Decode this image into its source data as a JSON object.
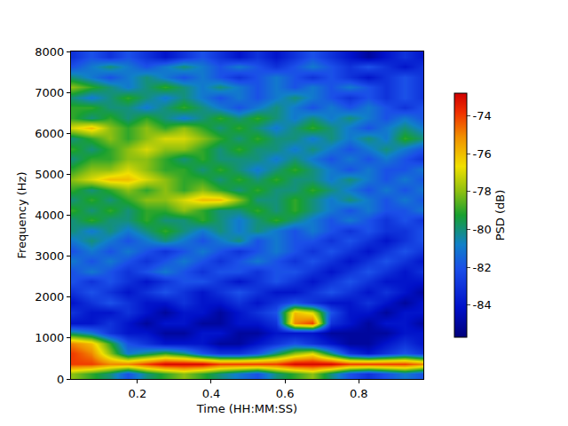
{
  "chart_data": {
    "type": "heatmap",
    "xlabel": "Time (HH:MM:SS)",
    "ylabel": "Frequency (Hz)",
    "xlim": [
      0.02,
      0.975
    ],
    "ylim": [
      0,
      8000
    ],
    "xticks": [
      0.2,
      0.4,
      0.6,
      0.8
    ],
    "yticks": [
      0,
      1000,
      2000,
      3000,
      4000,
      5000,
      6000,
      7000,
      8000
    ],
    "x": [
      0.025,
      0.075,
      0.125,
      0.175,
      0.225,
      0.275,
      0.325,
      0.375,
      0.425,
      0.475,
      0.525,
      0.575,
      0.625,
      0.675,
      0.725,
      0.775,
      0.825,
      0.875,
      0.925,
      0.975
    ],
    "y": [
      125,
      375,
      625,
      875,
      1125,
      1375,
      1625,
      1875,
      2125,
      2375,
      2625,
      2875,
      3125,
      3375,
      3625,
      3875,
      4125,
      4375,
      4625,
      4875,
      5125,
      5375,
      5625,
      5875,
      6125,
      6375,
      6625,
      6875,
      7125,
      7375,
      7625,
      7875
    ],
    "z": [
      [
        -78,
        -79,
        -80,
        -82,
        -80,
        -79,
        -78,
        -79,
        -80,
        -81,
        -82,
        -80,
        -79,
        -78,
        -80,
        -82,
        -83,
        -82,
        -81,
        -82
      ],
      [
        -74,
        -74,
        -75,
        -75,
        -74,
        -73,
        -73,
        -73,
        -74,
        -74,
        -74,
        -74,
        -73,
        -73,
        -73,
        -74,
        -74,
        -74,
        -74,
        -75
      ],
      [
        -74,
        -75,
        -78,
        -81,
        -80,
        -79,
        -80,
        -82,
        -83,
        -83,
        -82,
        -80,
        -78,
        -77,
        -80,
        -83,
        -84,
        -83,
        -82,
        -83
      ],
      [
        -75,
        -76,
        -79,
        -82,
        -83,
        -84,
        -84,
        -84,
        -85,
        -85,
        -84,
        -83,
        -82,
        -83,
        -84,
        -85,
        -85,
        -84,
        -83,
        -84
      ],
      [
        -80,
        -81,
        -83,
        -84,
        -84,
        -85,
        -85,
        -84,
        -84,
        -85,
        -85,
        -84,
        -84,
        -84,
        -85,
        -85,
        -85,
        -85,
        -84,
        -84
      ],
      [
        -84,
        -84,
        -83,
        -84,
        -85,
        -84,
        -84,
        -85,
        -85,
        -84,
        -84,
        -83,
        -75,
        -74,
        -83,
        -84,
        -85,
        -84,
        -84,
        -85
      ],
      [
        -83,
        -84,
        -84,
        -83,
        -84,
        -85,
        -84,
        -84,
        -85,
        -84,
        -83,
        -82,
        -76,
        -77,
        -82,
        -84,
        -84,
        -85,
        -84,
        -84
      ],
      [
        -84,
        -83,
        -82,
        -83,
        -84,
        -84,
        -83,
        -84,
        -84,
        -83,
        -84,
        -83,
        -82,
        -83,
        -84,
        -84,
        -83,
        -84,
        -85,
        -84
      ],
      [
        -83,
        -82,
        -83,
        -84,
        -83,
        -82,
        -83,
        -84,
        -83,
        -82,
        -83,
        -84,
        -84,
        -83,
        -82,
        -83,
        -84,
        -83,
        -84,
        -85
      ],
      [
        -82,
        -83,
        -82,
        -83,
        -84,
        -83,
        -82,
        -82,
        -83,
        -84,
        -83,
        -82,
        -83,
        -84,
        -83,
        -82,
        -83,
        -84,
        -84,
        -84
      ],
      [
        -82,
        -81,
        -82,
        -83,
        -82,
        -81,
        -82,
        -83,
        -82,
        -82,
        -83,
        -82,
        -82,
        -83,
        -84,
        -83,
        -82,
        -83,
        -84,
        -83
      ],
      [
        -81,
        -82,
        -81,
        -82,
        -83,
        -82,
        -81,
        -82,
        -83,
        -82,
        -81,
        -82,
        -83,
        -82,
        -83,
        -84,
        -83,
        -82,
        -83,
        -84
      ],
      [
        -82,
        -81,
        -82,
        -81,
        -82,
        -83,
        -82,
        -81,
        -82,
        -83,
        -82,
        -81,
        -82,
        -83,
        -82,
        -83,
        -84,
        -83,
        -82,
        -83
      ],
      [
        -81,
        -80,
        -81,
        -82,
        -81,
        -80,
        -81,
        -82,
        -81,
        -80,
        -82,
        -81,
        -82,
        -82,
        -83,
        -82,
        -83,
        -84,
        -83,
        -82
      ],
      [
        -80,
        -81,
        -80,
        -81,
        -80,
        -79,
        -80,
        -81,
        -80,
        -81,
        -80,
        -81,
        -82,
        -81,
        -82,
        -83,
        -82,
        -83,
        -83,
        -82
      ],
      [
        -80,
        -79,
        -80,
        -80,
        -79,
        -80,
        -80,
        -79,
        -80,
        -81,
        -80,
        -79,
        -80,
        -81,
        -82,
        -81,
        -82,
        -83,
        -82,
        -83
      ],
      [
        -79,
        -80,
        -79,
        -80,
        -79,
        -79,
        -78,
        -79,
        -80,
        -80,
        -79,
        -80,
        -79,
        -80,
        -81,
        -82,
        -81,
        -82,
        -82,
        -81
      ],
      [
        -80,
        -79,
        -80,
        -79,
        -78,
        -78,
        -77,
        -76,
        -76,
        -78,
        -80,
        -80,
        -79,
        -80,
        -81,
        -80,
        -81,
        -82,
        -81,
        -82
      ],
      [
        -79,
        -80,
        -79,
        -78,
        -79,
        -78,
        -79,
        -78,
        -79,
        -80,
        -79,
        -80,
        -80,
        -79,
        -80,
        -81,
        -82,
        -81,
        -82,
        -81
      ],
      [
        -78,
        -77,
        -76,
        -76,
        -77,
        -78,
        -79,
        -79,
        -80,
        -79,
        -80,
        -79,
        -80,
        -80,
        -81,
        -80,
        -81,
        -82,
        -81,
        -82
      ],
      [
        -79,
        -78,
        -78,
        -77,
        -78,
        -79,
        -79,
        -80,
        -79,
        -80,
        -81,
        -80,
        -79,
        -80,
        -81,
        -82,
        -81,
        -82,
        -82,
        -81
      ],
      [
        -80,
        -79,
        -79,
        -78,
        -78,
        -79,
        -80,
        -79,
        -80,
        -80,
        -80,
        -81,
        -80,
        -81,
        -82,
        -81,
        -82,
        -81,
        -82,
        -83
      ],
      [
        -79,
        -80,
        -79,
        -78,
        -77,
        -78,
        -78,
        -79,
        -80,
        -79,
        -80,
        -80,
        -81,
        -80,
        -81,
        -82,
        -81,
        -80,
        -81,
        -82
      ],
      [
        -80,
        -79,
        -78,
        -79,
        -78,
        -77,
        -77,
        -78,
        -79,
        -80,
        -79,
        -80,
        -80,
        -81,
        -80,
        -81,
        -80,
        -81,
        -79,
        -80
      ],
      [
        -77,
        -76,
        -78,
        -79,
        -78,
        -79,
        -78,
        -79,
        -80,
        -79,
        -80,
        -81,
        -80,
        -79,
        -80,
        -81,
        -82,
        -81,
        -80,
        -81
      ],
      [
        -79,
        -80,
        -79,
        -80,
        -79,
        -80,
        -81,
        -80,
        -79,
        -80,
        -79,
        -80,
        -81,
        -80,
        -81,
        -80,
        -81,
        -82,
        -81,
        -82
      ],
      [
        -79,
        -79,
        -80,
        -80,
        -81,
        -80,
        -79,
        -80,
        -81,
        -82,
        -81,
        -80,
        -81,
        -82,
        -81,
        -82,
        -81,
        -82,
        -83,
        -82
      ],
      [
        -80,
        -81,
        -80,
        -79,
        -80,
        -81,
        -80,
        -81,
        -82,
        -81,
        -82,
        -81,
        -80,
        -81,
        -82,
        -83,
        -82,
        -83,
        -82,
        -83
      ],
      [
        -78,
        -79,
        -80,
        -81,
        -80,
        -79,
        -80,
        -81,
        -80,
        -81,
        -82,
        -81,
        -82,
        -81,
        -82,
        -81,
        -82,
        -83,
        -82,
        -83
      ],
      [
        -80,
        -81,
        -82,
        -81,
        -80,
        -81,
        -82,
        -81,
        -82,
        -83,
        -82,
        -81,
        -82,
        -83,
        -82,
        -83,
        -84,
        -83,
        -82,
        -83
      ],
      [
        -82,
        -81,
        -80,
        -81,
        -82,
        -81,
        -80,
        -81,
        -82,
        -81,
        -82,
        -83,
        -82,
        -81,
        -82,
        -83,
        -82,
        -83,
        -84,
        -83
      ],
      [
        -83,
        -82,
        -83,
        -82,
        -83,
        -84,
        -83,
        -82,
        -83,
        -84,
        -83,
        -84,
        -83,
        -82,
        -83,
        -84,
        -85,
        -84,
        -83,
        -84
      ]
    ],
    "colorbar": {
      "label": "PSD (dB)",
      "range": [
        -85.7,
        -72.8
      ],
      "ticks": [
        -84,
        -82,
        -80,
        -78,
        -76,
        -74
      ]
    }
  }
}
